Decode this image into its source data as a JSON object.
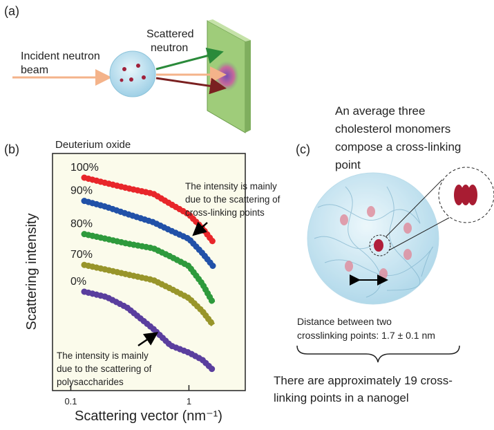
{
  "panel_a": {
    "label": "(a)",
    "beam_text": [
      "Incident neutron",
      "beam"
    ],
    "scattered_text": [
      "Scattered",
      "neutron"
    ]
  },
  "panel_b": {
    "label": "(b)",
    "chart_data": {
      "type": "line",
      "title": "Deuterium oxide",
      "x_label": "Scattering vector (nm⁻¹)",
      "y_label": "Scattering intensity",
      "x": [
        0.13,
        0.2,
        0.3,
        0.5,
        0.7,
        1,
        1.3,
        1.6
      ],
      "xlim": [
        0.07,
        3
      ],
      "xticks": [
        0.1,
        1
      ],
      "x_log": true,
      "ylim": [
        0,
        100
      ],
      "series": [
        {
          "name": "100%",
          "color": "#e8262a",
          "values": [
            89.8,
            87.5,
            85.4,
            83,
            78.7,
            74.3,
            68.5,
            62.7
          ]
        },
        {
          "name": "90%",
          "color": "#2151a8",
          "values": [
            80,
            77.5,
            74.5,
            71,
            67.5,
            64,
            58,
            52.5
          ]
        },
        {
          "name": "80%",
          "color": "#2e9a3c",
          "values": [
            66,
            64,
            62,
            60,
            56.5,
            52.5,
            45,
            37
          ]
        },
        {
          "name": "70%",
          "color": "#98952a",
          "values": [
            53,
            51,
            49,
            46.6,
            43,
            39,
            33.5,
            27.7
          ]
        },
        {
          "name": "0%",
          "color": "#5a3e9e",
          "values": [
            41.7,
            39.5,
            35,
            26,
            19,
            16,
            13,
            8.7
          ]
        }
      ],
      "annotations": [
        [
          "The intensity is mainly",
          "due to the scattering of",
          "cross-linking points"
        ],
        [
          "The intensity is mainly",
          "due to the scattering of",
          "polysaccharides"
        ]
      ]
    }
  },
  "panel_c": {
    "label": "(c)",
    "title": [
      "An average three",
      "cholesterol monomers",
      "compose a cross-linking",
      "point"
    ],
    "distance_text": [
      "Distance between two",
      "crosslinking points: 1.7 ± 0.1 nm"
    ],
    "count_text": [
      "There are approximately 19 cross-",
      "linking points in a nanogel"
    ]
  }
}
